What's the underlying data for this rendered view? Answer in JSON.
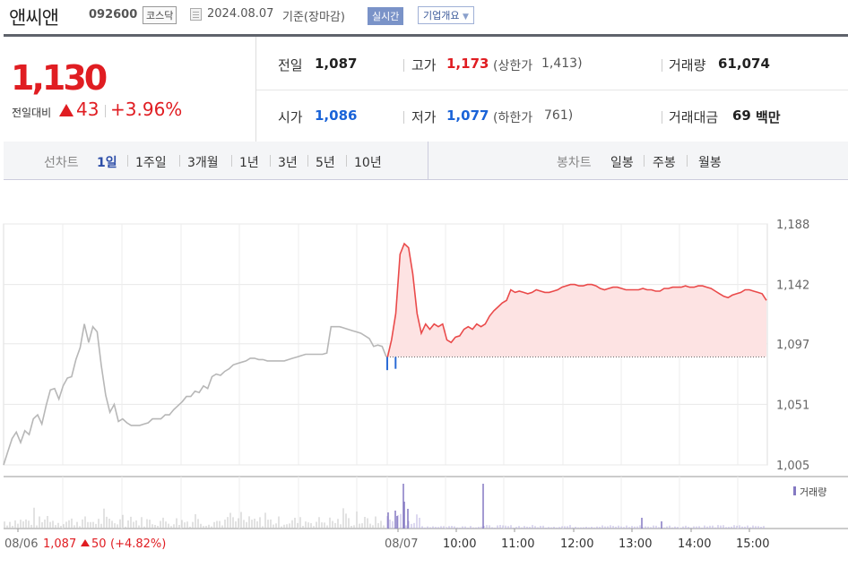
{
  "header": {
    "name": "앤씨앤",
    "code": "092600",
    "market": "코스닥",
    "date": "2024.08.07",
    "basis": "기준(장마감)",
    "realtime": "실시간",
    "company_info": "기업개요"
  },
  "summary": {
    "current": "1,130",
    "change_label": "전일대비",
    "change": "43",
    "change_pct": "+3.96%",
    "prev_label": "전일",
    "prev": "1,087",
    "high_label": "고가",
    "high": "1,173",
    "upper_limit_label": "(상한가",
    "upper_limit": "1,413)",
    "volume_label": "거래량",
    "volume": "61,074",
    "open_label": "시가",
    "open": "1,086",
    "low_label": "저가",
    "low": "1,077",
    "lower_limit_label": "(하한가",
    "lower_limit": "761)",
    "amount_label": "거래대금",
    "amount": "69",
    "amount_unit": "백만"
  },
  "tabs": {
    "line_label": "선차트",
    "line": [
      "1일",
      "1주일",
      "3개월",
      "1년",
      "3년",
      "5년",
      "10년"
    ],
    "active": "1일",
    "candle_label": "봉차트",
    "candle": [
      "일봉",
      "주봉",
      "월봉"
    ]
  },
  "chart_data": {
    "type": "line",
    "y_ticks": [
      "1,188",
      "1,142",
      "1,097",
      "1,051",
      "1,005"
    ],
    "ylim": [
      1005,
      1188
    ],
    "prev_close": 1087,
    "x_labels": [
      "08/06",
      "08/07",
      "10:00",
      "11:00",
      "12:00",
      "13:00",
      "14:00",
      "15:00"
    ],
    "prev_day_note": {
      "date": "08/06",
      "price": "1,087",
      "change": "50",
      "pct": "(+4.82%)"
    },
    "volume_legend": "거래량",
    "series": [
      {
        "day": "08/06",
        "color": "#b7b7b7",
        "values": [
          1005,
          1015,
          1025,
          1030,
          1022,
          1031,
          1028,
          1040,
          1043,
          1036,
          1050,
          1062,
          1063,
          1055,
          1065,
          1071,
          1072,
          1085,
          1094,
          1112,
          1098,
          1110,
          1106,
          1080,
          1058,
          1045,
          1051,
          1038,
          1040,
          1037,
          1035,
          1035,
          1035,
          1036,
          1037,
          1040,
          1040,
          1040,
          1043,
          1043,
          1047,
          1050,
          1053,
          1057,
          1057,
          1061,
          1060,
          1065,
          1063,
          1072,
          1074,
          1073,
          1076,
          1078,
          1081,
          1082,
          1083,
          1084,
          1086,
          1086,
          1085,
          1085,
          1084,
          1084,
          1084,
          1084,
          1084,
          1085,
          1086,
          1087,
          1088,
          1089,
          1089,
          1089,
          1089,
          1089,
          1090,
          1110,
          1110,
          1110,
          1109,
          1108,
          1107,
          1106,
          1105,
          1103,
          1101,
          1095,
          1096,
          1095,
          1087
        ]
      },
      {
        "day": "08/07",
        "color": "#ea4a4a",
        "values": [
          1086,
          1100,
          1120,
          1165,
          1173,
          1170,
          1150,
          1120,
          1105,
          1112,
          1108,
          1112,
          1110,
          1112,
          1100,
          1098,
          1102,
          1103,
          1108,
          1110,
          1108,
          1112,
          1110,
          1112,
          1118,
          1122,
          1125,
          1128,
          1130,
          1138,
          1136,
          1137,
          1136,
          1135,
          1136,
          1138,
          1137,
          1136,
          1136,
          1137,
          1138,
          1140,
          1141,
          1142,
          1142,
          1141,
          1141,
          1142,
          1142,
          1141,
          1139,
          1138,
          1139,
          1140,
          1140,
          1139,
          1138,
          1138,
          1138,
          1138,
          1139,
          1138,
          1138,
          1137,
          1137,
          1139,
          1139,
          1140,
          1140,
          1140,
          1141,
          1140,
          1140,
          1141,
          1141,
          1140,
          1139,
          1137,
          1135,
          1133,
          1132,
          1134,
          1135,
          1136,
          1138,
          1138,
          1137,
          1136,
          1135,
          1130
        ]
      }
    ],
    "dips": [
      {
        "x_frac": 0.0,
        "v": 1077
      },
      {
        "x_frac": 0.022,
        "v": 1078
      }
    ]
  }
}
